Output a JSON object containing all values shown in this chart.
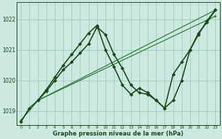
{
  "background_color": "#cce8e0",
  "grid_color": "#99ccbb",
  "line_color_medium": "#2d7a3a",
  "line_color_dark": "#1a4a1a",
  "xlabel": "Graphe pression niveau de la mer (hPa)",
  "xlim": [
    -0.5,
    23.5
  ],
  "ylim": [
    1018.55,
    1022.55
  ],
  "yticks": [
    1019,
    1020,
    1021,
    1022
  ],
  "xticks": [
    0,
    1,
    2,
    3,
    4,
    5,
    6,
    7,
    8,
    9,
    10,
    11,
    12,
    13,
    14,
    15,
    16,
    17,
    18,
    19,
    20,
    21,
    22,
    23
  ],
  "series": [
    {
      "x": [
        0,
        2,
        23
      ],
      "y": [
        1018.7,
        1019.35,
        1022.3
      ],
      "color": "#2d7a3a",
      "lw": 0.9,
      "ms": 2.0
    },
    {
      "x": [
        0,
        2,
        23
      ],
      "y": [
        1018.7,
        1019.35,
        1022.1
      ],
      "color": "#2d7a3a",
      "lw": 0.9,
      "ms": 2.0
    },
    {
      "x": [
        0,
        1,
        2,
        3,
        4,
        5,
        6,
        7,
        8,
        9,
        10,
        11,
        12,
        13,
        14,
        15,
        16,
        17,
        18,
        19,
        20,
        21,
        22,
        23
      ],
      "y": [
        1018.65,
        1019.1,
        1019.35,
        1019.65,
        1020.0,
        1020.35,
        1020.6,
        1020.9,
        1021.2,
        1021.75,
        1021.5,
        1020.85,
        1020.4,
        1019.85,
        1019.6,
        1019.55,
        1019.35,
        1019.1,
        1019.35,
        1020.0,
        1021.0,
        1021.5,
        1021.95,
        1022.3
      ],
      "color": "#1a4a1a",
      "lw": 1.2,
      "ms": 2.8
    },
    {
      "x": [
        2,
        3,
        4,
        5,
        6,
        7,
        8,
        9,
        10,
        11,
        12,
        13,
        14,
        15,
        16,
        17,
        18,
        19,
        20,
        21,
        22,
        23
      ],
      "y": [
        1019.35,
        1019.7,
        1020.1,
        1020.5,
        1020.85,
        1021.2,
        1021.55,
        1021.8,
        1021.0,
        1020.45,
        1019.85,
        1019.55,
        1019.75,
        1019.6,
        1019.35,
        1019.1,
        1020.2,
        1020.6,
        1021.0,
        1021.55,
        1021.9,
        1022.3
      ],
      "color": "#1a4a1a",
      "lw": 1.2,
      "ms": 2.8
    }
  ]
}
